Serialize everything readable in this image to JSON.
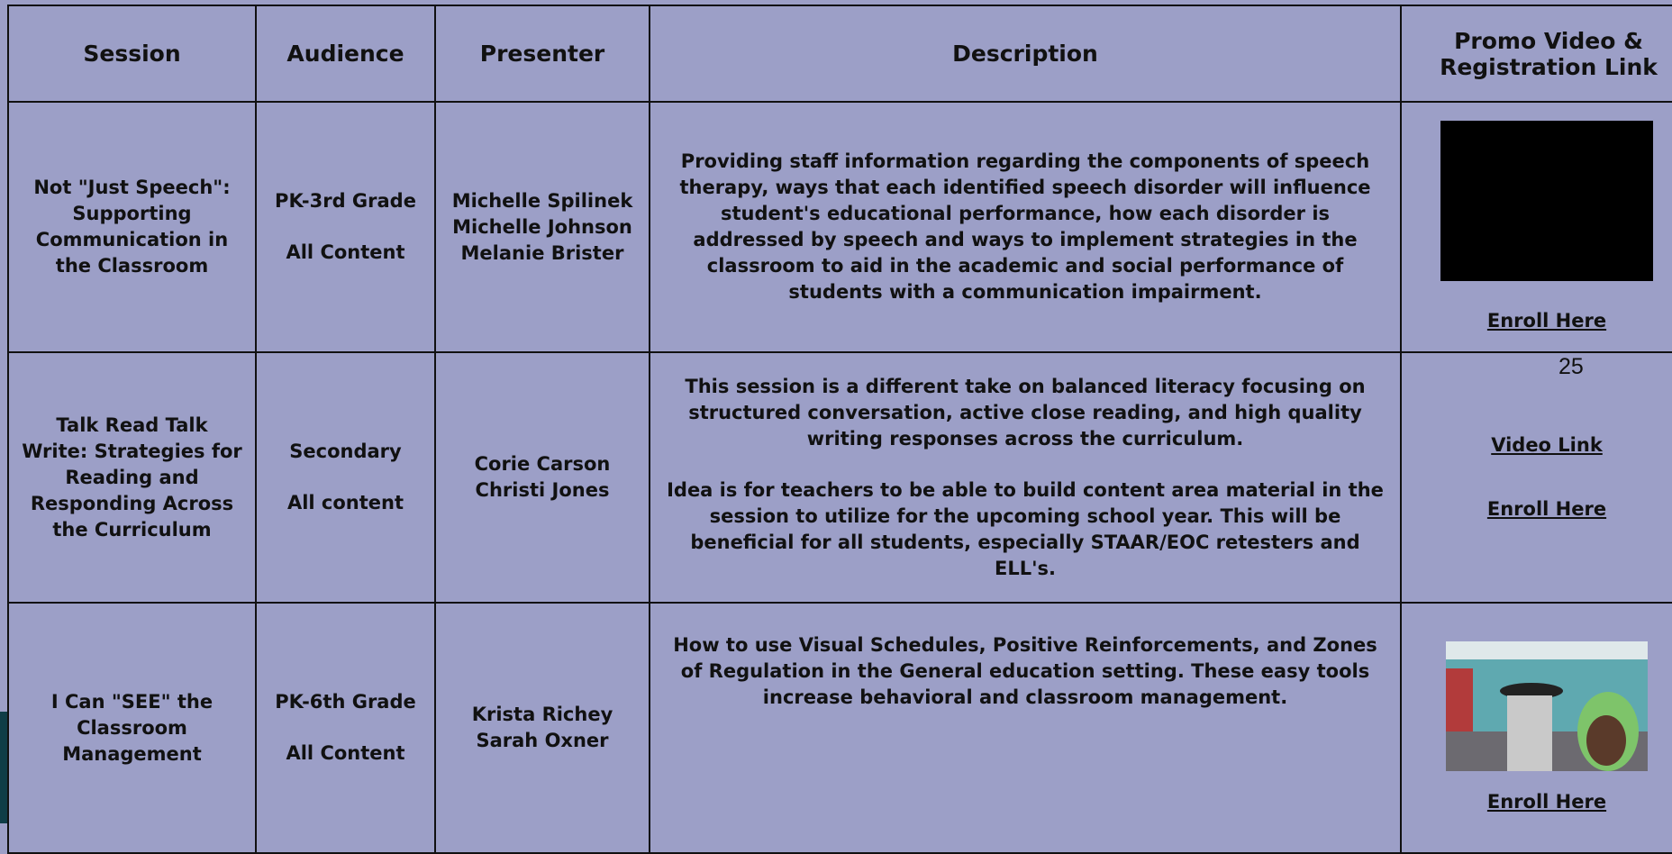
{
  "table": {
    "headers": [
      "Session",
      "Audience",
      "Presenter",
      "Description",
      "Promo Video & Registration Link"
    ],
    "rows": [
      {
        "session": "Not \"Just Speech\": Supporting Communication in the Classroom",
        "audience": [
          "PK-3rd Grade",
          "All Content"
        ],
        "presenters": [
          "Michelle Spilinek",
          "Michelle Johnson",
          "Melanie Brister"
        ],
        "description": [
          "Providing staff information regarding the components of speech therapy, ways that each identified speech disorder will influence student's educational performance, how each disorder is addressed by speech and ways to implement strategies in the classroom to aid in the academic and social performance of students with a communication impairment."
        ],
        "links": [
          "Enroll Here"
        ]
      },
      {
        "session": "Talk Read Talk Write: Strategies for Reading and Responding Across the Curriculum",
        "audience": [
          "Secondary",
          "All content"
        ],
        "presenters": [
          "Corie Carson",
          "Christi Jones"
        ],
        "description": [
          "This session is a different take on balanced literacy focusing on structured conversation, active close reading, and high quality writing responses across the curriculum.",
          "Idea is for teachers to be able to build content area material in the session to utilize for the upcoming school year. This will be beneficial for all students, especially STAAR/EOC retesters and ELL's."
        ],
        "links": [
          "Video Link",
          "Enroll Here"
        ]
      },
      {
        "session": "I Can \"SEE\" the Classroom Management",
        "audience": [
          "PK-6th Grade",
          "All Content"
        ],
        "presenters": [
          "Krista Richey",
          "Sarah Oxner"
        ],
        "description": [
          "How to use Visual Schedules, Positive Reinforcements, and Zones of Regulation in the General education setting. These easy tools increase behavioral and classroom management."
        ],
        "links": [
          "Enroll Here"
        ]
      }
    ]
  },
  "page_number": "25"
}
